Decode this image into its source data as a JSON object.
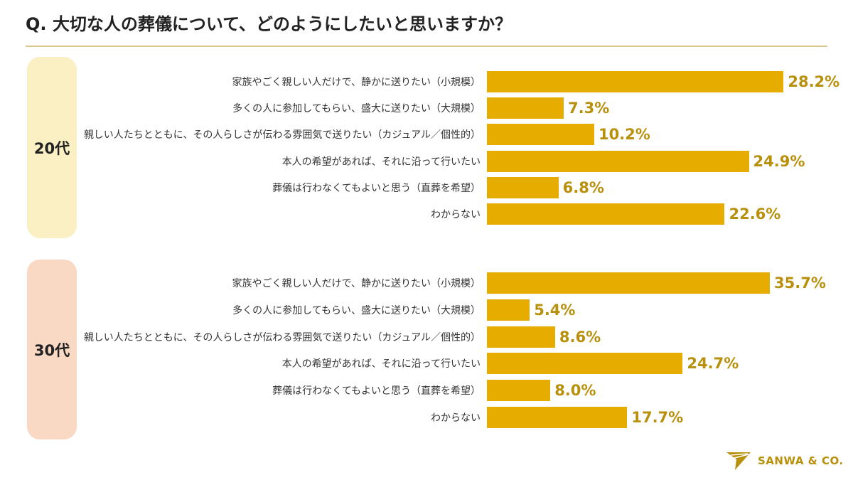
{
  "title": "Q. 大切な人の葬儀について、どのようにしたいと思いますか？",
  "colors": {
    "bar": "#E6AD00",
    "value_text": "#B8900C",
    "group_20": "#FBEFC4",
    "group_30": "#F9D8C4",
    "rule": "#D9C98A",
    "logo": "#B8900C"
  },
  "logo": {
    "text": "SANWA & CO.",
    "icon": "paper-plane-icon"
  },
  "chart_data": {
    "type": "bar",
    "orientation": "horizontal",
    "unit": "%",
    "categories": [
      "家族やごく親しい人だけで、静かに送りたい（小規模）",
      "多くの人に参加してもらい、盛大に送りたい（大規模）",
      "親しい人たちとともに、その人らしさが伝わる雰囲気で送りたい（カジュアル／個性的）",
      "本人の希望があれば、それに沿って行いたい",
      "葬儀は行わなくてもよいと思う（直葬を希望）",
      "わからない"
    ],
    "groups": [
      {
        "name": "20代",
        "values": [
          28.2,
          7.3,
          10.2,
          24.9,
          6.8,
          22.6
        ],
        "labels": [
          "28.2%",
          "7.3%",
          "10.2%",
          "24.9%",
          "6.8%",
          "22.6%"
        ]
      },
      {
        "name": "30代",
        "values": [
          35.7,
          5.4,
          8.6,
          24.7,
          8.0,
          17.7
        ],
        "labels": [
          "35.7%",
          "5.4%",
          "8.6%",
          "24.7%",
          "8.0%",
          "17.7%"
        ]
      }
    ],
    "grid": false,
    "legend": "none"
  }
}
